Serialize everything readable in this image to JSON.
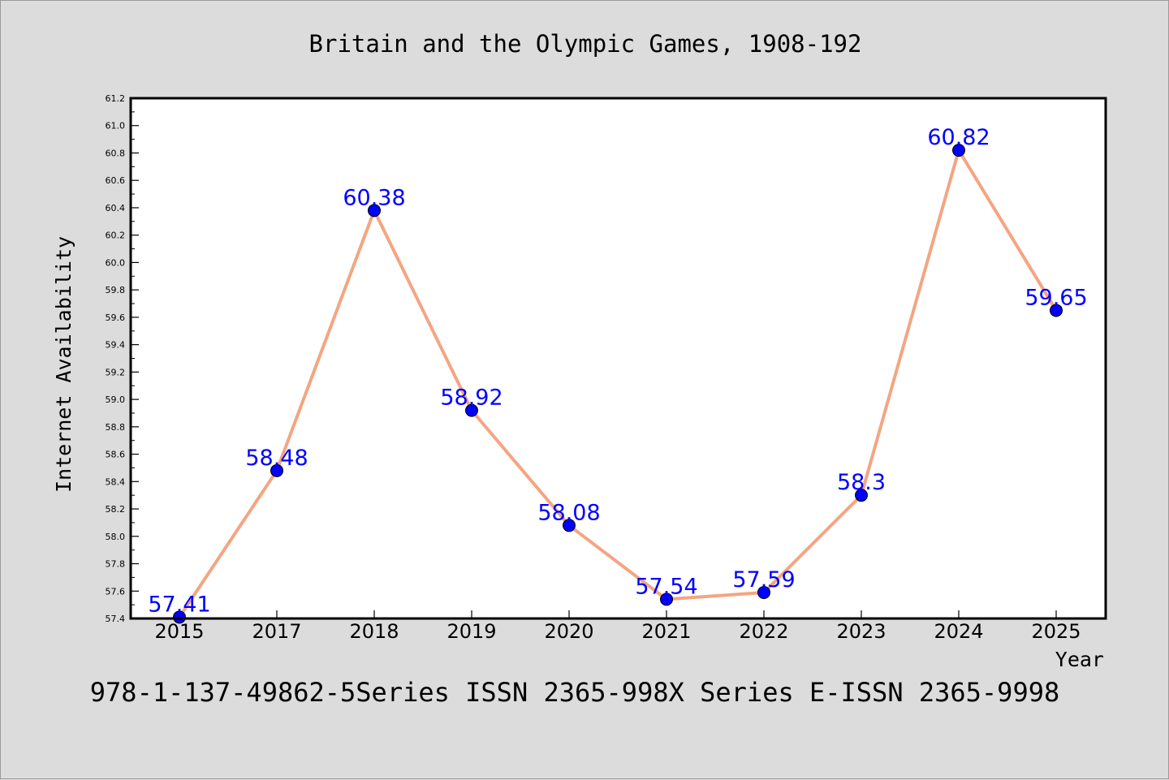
{
  "chart_data": {
    "type": "line",
    "title": "Britain and the Olympic Games, 1908-192",
    "xlabel": "Year",
    "ylabel": "Internet Availability",
    "footer": "978-1-137-49862-5Series ISSN 2365-998X Series E-ISSN 2365-9998",
    "categories": [
      "2015",
      "2017",
      "2018",
      "2019",
      "2020",
      "2021",
      "2022",
      "2023",
      "2024",
      "2025"
    ],
    "series": [
      {
        "values": [
          57.41,
          58.48,
          60.38,
          58.92,
          58.08,
          57.54,
          57.59,
          58.3,
          60.82,
          59.65
        ],
        "labels": [
          "57.41",
          "58.48",
          "60.38",
          "58.92",
          "58.08",
          "57.54",
          "57.59",
          "58.3",
          "60.82",
          "59.65"
        ]
      }
    ],
    "ylim": [
      57.4,
      61.2
    ],
    "yticks": [
      "57.4",
      "57.6",
      "57.8",
      "58.0",
      "58.2",
      "58.4",
      "58.6",
      "58.8",
      "59.0",
      "59.2",
      "59.4",
      "59.6",
      "59.8",
      "60.0",
      "60.2",
      "60.4",
      "60.6",
      "60.8",
      "61.0",
      "61.2"
    ],
    "grid": false,
    "legend": "none",
    "colors": {
      "line": "#f4a582",
      "marker": "#0000ff",
      "label": "#0000ff",
      "axes": "#000000",
      "plot_bg": "#ffffff",
      "page_bg": "#dcdcdc"
    }
  }
}
